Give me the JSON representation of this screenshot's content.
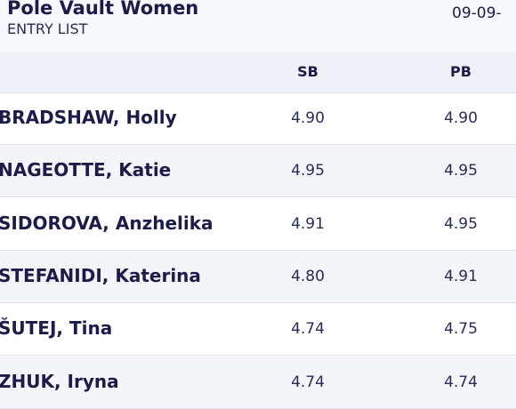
{
  "header": {
    "title": "Pole Vault Women",
    "subtitle": "ENTRY LIST",
    "date": "09-09-"
  },
  "table": {
    "columns": [
      "SB",
      "PB"
    ],
    "rows": [
      [
        "BRADSHAW, Holly",
        "4.90",
        "4.90"
      ],
      [
        "NAGEOTTE, Katie",
        "4.95",
        "4.95"
      ],
      [
        "SIDOROVA, Anzhelika",
        "4.91",
        "4.95"
      ],
      [
        "STEFANIDI, Katerina",
        "4.80",
        "4.91"
      ],
      [
        "ŠUTEJ, Tina",
        "4.74",
        "4.75"
      ],
      [
        "ZHUK, Iryna",
        "4.74",
        "4.74"
      ]
    ]
  }
}
